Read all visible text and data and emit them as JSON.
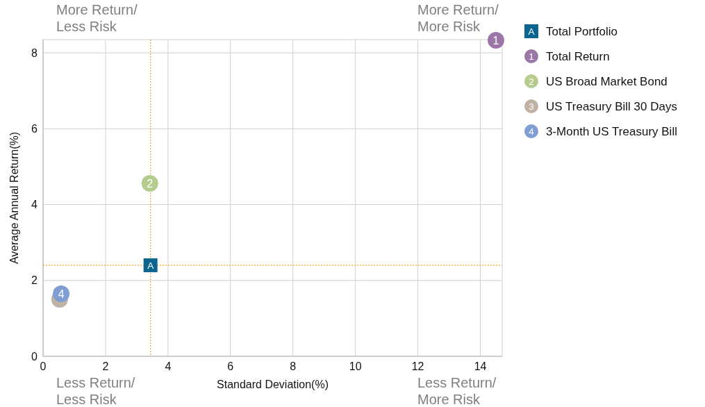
{
  "chart_data": {
    "type": "scatter",
    "xlabel": "Standard Deviation(%)",
    "ylabel": "Average Annual Return(%)",
    "xlim": [
      0,
      14.7
    ],
    "ylim": [
      0,
      8.35
    ],
    "xticks": [
      0,
      2,
      4,
      6,
      8,
      10,
      12,
      14
    ],
    "yticks": [
      0,
      2,
      4,
      6,
      8
    ],
    "grid": true,
    "legend": "right",
    "series": [
      {
        "name": "Total Portfolio",
        "color": "#0a6690",
        "marker": "square",
        "x": [
          3.44
        ],
        "values": [
          2.4
        ]
      },
      {
        "name": "Total Return",
        "color": "#9b77a8",
        "marker": "circle",
        "x": [
          14.5
        ],
        "values": [
          8.33
        ]
      },
      {
        "name": "US Broad Market Bond",
        "color": "#b5cc8e",
        "marker": "circle",
        "x": [
          3.42
        ],
        "values": [
          4.56
        ]
      },
      {
        "name": "US Treasury Bill 30 Days",
        "color": "#bfb1a3",
        "marker": "circle",
        "x": [
          0.53
        ],
        "values": [
          1.5
        ]
      },
      {
        "name": "3-Month US Treasury Bill",
        "color": "#7f9fd4",
        "marker": "circle",
        "x": [
          0.58
        ],
        "values": [
          1.65
        ]
      }
    ],
    "ref_lines": [
      {
        "axis": "x",
        "value": 3.44,
        "color": "#f5a623",
        "line_style": "dotted"
      },
      {
        "axis": "y",
        "value": 2.4,
        "color": "#f5a623",
        "line_style": "dotted"
      }
    ],
    "annotations": [
      "More Return/ Less Risk",
      "More Return/ More Risk",
      "Less Return/ Less Risk",
      "Less Return/ More Risk",
      {
        "text": "A",
        "x": 3.44,
        "y": 2.4
      },
      {
        "text": "1",
        "x": 14.5,
        "y": 8.33
      },
      {
        "text": "2",
        "x": 3.42,
        "y": 4.56
      },
      "3",
      {
        "text": "4",
        "x": 0.58,
        "y": 1.65
      }
    ]
  }
}
